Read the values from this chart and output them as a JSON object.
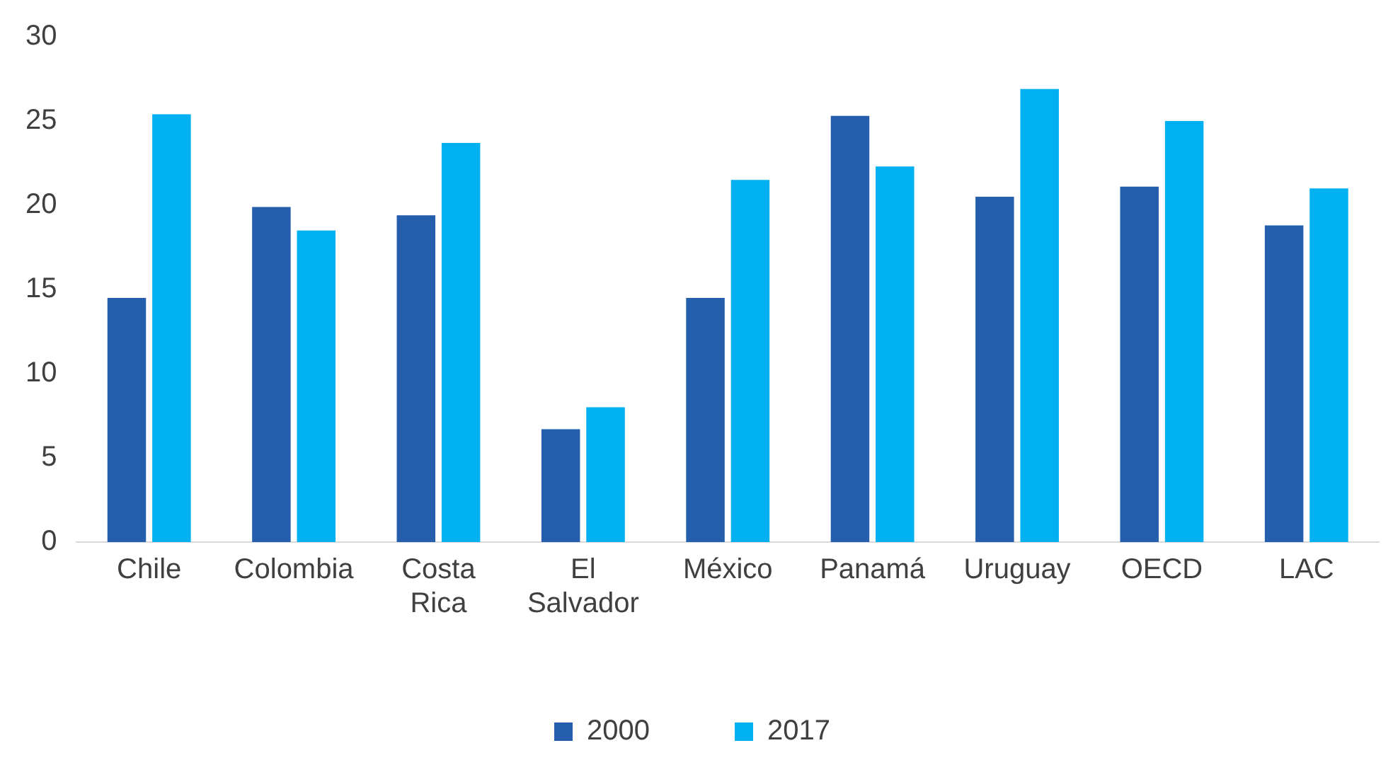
{
  "chart_data": {
    "type": "bar",
    "categories": [
      "Chile",
      "Colombia",
      "Costa Rica",
      "El Salvador",
      "México",
      "Panamá",
      "Uruguay",
      "OECD",
      "LAC"
    ],
    "series": [
      {
        "name": "2000",
        "color": "#245ead",
        "values": [
          14.5,
          19.9,
          19.4,
          6.7,
          14.5,
          25.3,
          20.5,
          21.1,
          18.8
        ]
      },
      {
        "name": "2017",
        "color": "#00b0f0",
        "values": [
          25.4,
          18.5,
          23.7,
          8.0,
          21.5,
          22.3,
          26.9,
          25.0,
          21.0
        ]
      }
    ],
    "ylim": [
      0,
      30
    ],
    "yticks": [
      0,
      5,
      10,
      15,
      20,
      25,
      30
    ],
    "grid": false,
    "legend": "bottom"
  }
}
